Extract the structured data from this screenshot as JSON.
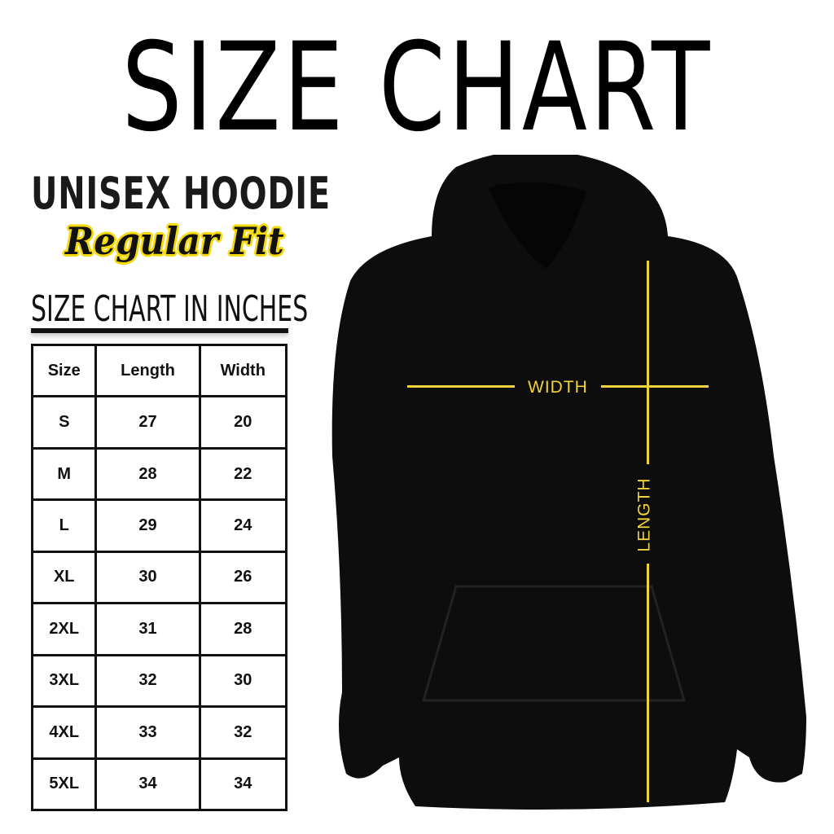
{
  "title": "SIZE CHART",
  "product": {
    "name": "UNISEX HOODIE",
    "fit": "Regular Fit"
  },
  "unit_heading": "SIZE CHART IN INCHES",
  "table": {
    "headers": [
      "Size",
      "Length",
      "Width"
    ],
    "rows": [
      [
        "S",
        "27",
        "20"
      ],
      [
        "M",
        "28",
        "22"
      ],
      [
        "L",
        "29",
        "24"
      ],
      [
        "XL",
        "30",
        "26"
      ],
      [
        "2XL",
        "31",
        "28"
      ],
      [
        "3XL",
        "32",
        "30"
      ],
      [
        "4XL",
        "33",
        "32"
      ],
      [
        "5XL",
        "34",
        "34"
      ]
    ]
  },
  "diagram": {
    "width_label": "WIDTH",
    "length_label": "LENGTH",
    "line_color": "#f0d23a",
    "garment_color": "#0d0d0d"
  }
}
